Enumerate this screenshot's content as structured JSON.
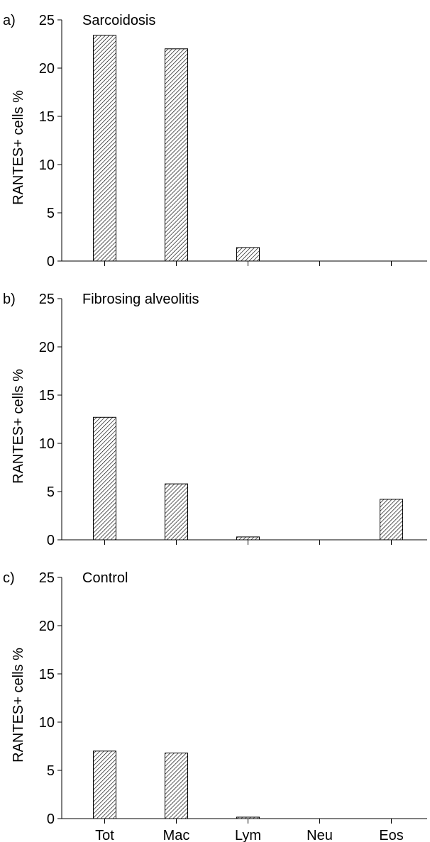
{
  "chart_data": [
    {
      "type": "bar",
      "panel_label": "a)",
      "title": "Sarcoidosis",
      "ylabel": "RANTES+ cells %",
      "xlabel": "",
      "ylim": [
        0,
        25
      ],
      "yticks": [
        0,
        5,
        10,
        15,
        20,
        25
      ],
      "categories": [
        "Tot",
        "Mac",
        "Lym",
        "Neu",
        "Eos"
      ],
      "values": [
        23.4,
        22.0,
        1.4,
        0,
        0
      ],
      "show_xtick_labels": false
    },
    {
      "type": "bar",
      "panel_label": "b)",
      "title": "Fibrosing alveolitis",
      "ylabel": "RANTES+ cells %",
      "xlabel": "",
      "ylim": [
        0,
        25
      ],
      "yticks": [
        0,
        5,
        10,
        15,
        20,
        25
      ],
      "categories": [
        "Tot",
        "Mac",
        "Lym",
        "Neu",
        "Eos"
      ],
      "values": [
        12.7,
        5.8,
        0.3,
        0,
        4.2
      ],
      "show_xtick_labels": false
    },
    {
      "type": "bar",
      "panel_label": "c)",
      "title": "Control",
      "ylabel": "RANTES+ cells %",
      "xlabel": "",
      "ylim": [
        0,
        25
      ],
      "yticks": [
        0,
        5,
        10,
        15,
        20,
        25
      ],
      "categories": [
        "Tot",
        "Mac",
        "Lym",
        "Neu",
        "Eos"
      ],
      "values": [
        7.0,
        6.8,
        0.15,
        0,
        0
      ],
      "show_xtick_labels": true
    }
  ]
}
